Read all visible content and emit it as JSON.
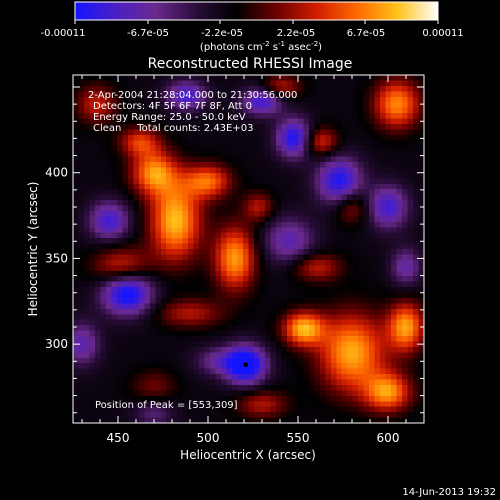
{
  "colorbar": {
    "ticks": [
      "-0.00011",
      "-6.7e-05",
      "-2.2e-05",
      "2.2e-05",
      "6.7e-05",
      "0.00011"
    ],
    "unit_main": "(photons cm",
    "unit_exp1": "-2",
    "unit_mid": " s",
    "unit_exp2": "-1",
    "unit_tail": " asec",
    "unit_exp3": "-2",
    "unit_close": ")",
    "colors": [
      "#1414ff",
      "#4b1fc6",
      "#6a2a8e",
      "#2a0d3a",
      "#000000",
      "#6b0000",
      "#d21e00",
      "#ff6a00",
      "#ffc21a",
      "#ffffff"
    ]
  },
  "chart_data": {
    "type": "heatmap",
    "title": "Reconstructed RHESSI Image",
    "xlabel": "Heliocentric X (arcsec)",
    "ylabel": "Heliocentric Y (arcsec)",
    "xlim": [
      425,
      620
    ],
    "ylim": [
      254,
      457
    ],
    "x_ticks": [
      450,
      500,
      550,
      600
    ],
    "y_ticks": [
      300,
      350,
      400
    ],
    "annotations": [
      "2-Apr-2004 21:28:04.000 to 21:30:56.000",
      "Detectors: 4F 5F 6F 7F 8F, Att 0",
      "Energy Range: 25.0 - 50.0 keV",
      "Clean     Total counts: 2.43E+03"
    ],
    "peak_label": "Position of Peak = [553,309]",
    "peak": [
      553,
      309
    ],
    "min_marker": [
      521,
      288
    ],
    "sources": [
      {
        "x": 482,
        "y": 372,
        "sx": 10,
        "sy": 16,
        "a": 1.0
      },
      {
        "x": 470,
        "y": 400,
        "sx": 9,
        "sy": 9,
        "a": 0.85
      },
      {
        "x": 500,
        "y": 395,
        "sx": 9,
        "sy": 7,
        "a": 0.75
      },
      {
        "x": 515,
        "y": 350,
        "sx": 8,
        "sy": 13,
        "a": 0.9
      },
      {
        "x": 452,
        "y": 345,
        "sx": 11,
        "sy": 8,
        "a": 0.6
      },
      {
        "x": 462,
        "y": 418,
        "sx": 8,
        "sy": 6,
        "a": 0.6
      },
      {
        "x": 490,
        "y": 318,
        "sx": 13,
        "sy": 6,
        "a": 0.45
      },
      {
        "x": 580,
        "y": 295,
        "sx": 13,
        "sy": 16,
        "a": 0.95
      },
      {
        "x": 610,
        "y": 310,
        "sx": 7,
        "sy": 10,
        "a": 0.9
      },
      {
        "x": 553,
        "y": 309,
        "sx": 8,
        "sy": 7,
        "a": 0.95
      },
      {
        "x": 600,
        "y": 272,
        "sx": 9,
        "sy": 8,
        "a": 0.85
      },
      {
        "x": 605,
        "y": 440,
        "sx": 9,
        "sy": 10,
        "a": 0.85
      },
      {
        "x": 562,
        "y": 418,
        "sx": 7,
        "sy": 6,
        "a": 0.6
      },
      {
        "x": 540,
        "y": 450,
        "sx": 8,
        "sy": 5,
        "a": 0.5
      },
      {
        "x": 560,
        "y": 345,
        "sx": 10,
        "sy": 6,
        "a": 0.5
      },
      {
        "x": 530,
        "y": 265,
        "sx": 10,
        "sy": 6,
        "a": 0.45
      },
      {
        "x": 470,
        "y": 275,
        "sx": 9,
        "sy": 7,
        "a": 0.3
      },
      {
        "x": 438,
        "y": 440,
        "sx": 8,
        "sy": 8,
        "a": 0.5
      },
      {
        "x": 580,
        "y": 380,
        "sx": 7,
        "sy": 7,
        "a": 0.45
      },
      {
        "x": 528,
        "y": 380,
        "sx": 6,
        "sy": 6,
        "a": 0.45
      },
      {
        "x": 445,
        "y": 372,
        "sx": 8,
        "sy": 8,
        "a": -0.7
      },
      {
        "x": 455,
        "y": 330,
        "sx": 10,
        "sy": 9,
        "a": -1.0
      },
      {
        "x": 521,
        "y": 288,
        "sx": 8,
        "sy": 8,
        "a": -1.1
      },
      {
        "x": 548,
        "y": 420,
        "sx": 7,
        "sy": 8,
        "a": -0.9
      },
      {
        "x": 573,
        "y": 395,
        "sx": 9,
        "sy": 10,
        "a": -0.85
      },
      {
        "x": 530,
        "y": 442,
        "sx": 8,
        "sy": 6,
        "a": -0.75
      },
      {
        "x": 488,
        "y": 445,
        "sx": 8,
        "sy": 6,
        "a": -0.7
      },
      {
        "x": 600,
        "y": 380,
        "sx": 8,
        "sy": 9,
        "a": -0.7
      },
      {
        "x": 430,
        "y": 300,
        "sx": 7,
        "sy": 9,
        "a": -0.55
      },
      {
        "x": 545,
        "y": 360,
        "sx": 10,
        "sy": 10,
        "a": -0.55
      },
      {
        "x": 505,
        "y": 290,
        "sx": 9,
        "sy": 6,
        "a": -0.4
      },
      {
        "x": 610,
        "y": 345,
        "sx": 6,
        "sy": 8,
        "a": -0.5
      },
      {
        "x": 470,
        "y": 260,
        "sx": 8,
        "sy": 6,
        "a": -0.35
      }
    ]
  },
  "footer": {
    "timestamp": "14-Jun-2013 19:32"
  }
}
